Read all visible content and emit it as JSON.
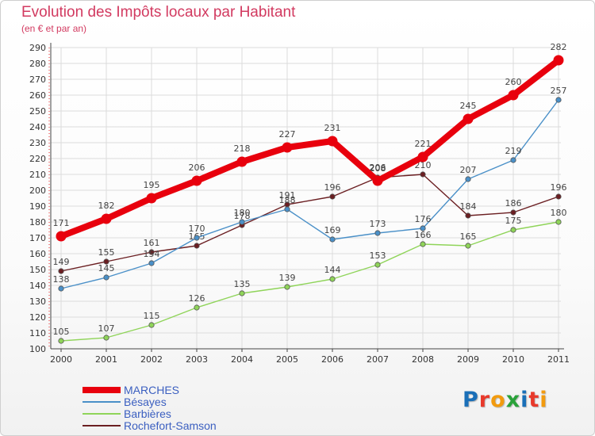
{
  "header": {
    "title": "Evolution des Impôts locaux par Habitant",
    "subtitle": "(en € et par an)"
  },
  "logo": {
    "text": "Proxiti",
    "colors": [
      "#1a6fb8",
      "#e8392b",
      "#f29b0f",
      "#2aa23a",
      "#1a6fb8",
      "#e8392b",
      "#f29b0f"
    ]
  },
  "chart_data": {
    "type": "line",
    "categories": [
      "2000",
      "2001",
      "2002",
      "2003",
      "2004",
      "2005",
      "2006",
      "2007",
      "2008",
      "2009",
      "2010",
      "2011"
    ],
    "ylim": [
      100,
      290
    ],
    "yticks": [
      100,
      110,
      120,
      130,
      140,
      150,
      160,
      170,
      180,
      190,
      200,
      210,
      220,
      230,
      240,
      250,
      260,
      270,
      280,
      290
    ],
    "grid": true,
    "legend_position": "bottom-left",
    "series": [
      {
        "name": "MARCHES",
        "color": "#e8000d",
        "values": [
          171,
          182,
          195,
          206,
          218,
          227,
          231,
          206,
          221,
          245,
          260,
          282
        ]
      },
      {
        "name": "Bésayes",
        "color": "#4a90c8",
        "values": [
          138,
          145,
          154,
          170,
          180,
          188,
          169,
          173,
          176,
          207,
          219,
          257
        ]
      },
      {
        "name": "Barbières",
        "color": "#8fd459",
        "values": [
          105,
          107,
          115,
          126,
          135,
          139,
          144,
          153,
          166,
          165,
          175,
          180
        ]
      },
      {
        "name": "Rochefort-Samson",
        "color": "#6b1f22",
        "values": [
          149,
          155,
          161,
          165,
          178,
          191,
          196,
          208,
          210,
          184,
          186,
          196
        ]
      }
    ]
  }
}
